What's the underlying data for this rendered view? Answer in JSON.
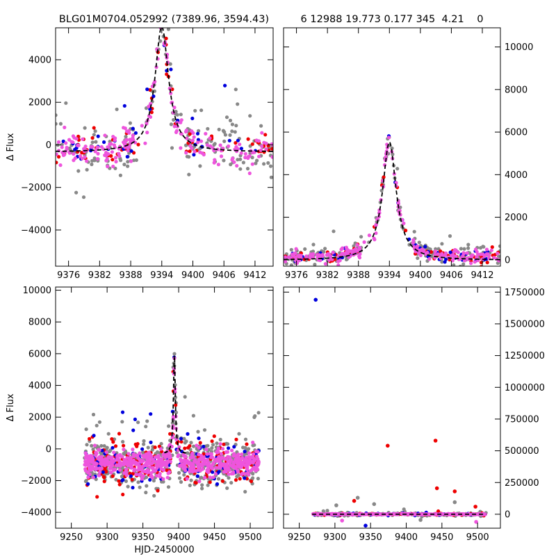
{
  "header": {
    "left_title": "BLG01M0704.052992 (7389.96, 3594.43)",
    "right_title": "6 12988 19.773 0.177 345  4.21    0"
  },
  "colors": {
    "gray": "#888888",
    "red": "#ee0000",
    "blue": "#0000dd",
    "magenta": "#ee55dd",
    "model": "#000000"
  },
  "chart_data": [
    {
      "id": "top-left",
      "type": "scatter",
      "title": "BLG01M0704.052992 (7389.96, 3594.43)",
      "xlabel": "",
      "ylabel": "Δ Flux",
      "xlim": [
        9373.5,
        9415.5
      ],
      "ylim": [
        -5700,
        5500
      ],
      "xticks": [
        9376,
        9382,
        9388,
        9394,
        9400,
        9406,
        9412
      ],
      "xtick_labels": [
        "9376",
        "9382",
        "9388",
        "9394",
        "9400",
        "9406",
        "9412"
      ],
      "yticks": [
        -4000,
        -2000,
        0,
        2000,
        4000
      ],
      "ytick_labels": [
        "−4000",
        "−2000",
        "0",
        "2000",
        "4000"
      ],
      "yaxis_side": "left",
      "xaxis_labels": true,
      "model": {
        "t0": 9394.0,
        "tE_hw": 1.6,
        "amp": 5900,
        "base": -340,
        "x": [
          9373.5,
          9415.5
        ]
      },
      "scatter": {
        "seed": 11,
        "x": [
          9373.5,
          9415.5
        ],
        "gap": [
          9388.6,
          9391.0
        ],
        "gap2": [
          9397.1,
          9398.6
        ],
        "base": -300,
        "n": [
          180,
          70,
          40,
          200
        ],
        "spread": [
          1400,
          900,
          900,
          700
        ]
      }
    },
    {
      "id": "top-right",
      "type": "scatter",
      "title": "6 12988 19.773 0.177 345  4.21    0",
      "xlabel": "",
      "ylabel": "",
      "xlim": [
        9373.5,
        9415.5
      ],
      "ylim": [
        -300,
        10900
      ],
      "xticks": [
        9376,
        9382,
        9388,
        9394,
        9400,
        9406,
        9412
      ],
      "xtick_labels": [
        "9376",
        "9382",
        "9388",
        "9394",
        "9400",
        "9406",
        "9412"
      ],
      "yticks": [
        0,
        2000,
        4000,
        6000,
        8000,
        10000
      ],
      "ytick_labels": [
        "0",
        "2000",
        "4000",
        "6000",
        "8000",
        "10000"
      ],
      "yaxis_side": "right",
      "xaxis_labels": true,
      "model": {
        "t0": 9394.0,
        "tE_hw": 1.6,
        "amp": 5550,
        "base": -20,
        "x": [
          9373.5,
          9415.5
        ]
      },
      "scatter": {
        "seed": 23,
        "x": [
          9373.5,
          9415.5
        ],
        "gap": [
          9388.6,
          9391.0
        ],
        "gap2": [
          9397.1,
          9398.6
        ],
        "base": 100,
        "n": [
          180,
          70,
          40,
          200
        ],
        "spread": [
          500,
          350,
          350,
          300
        ]
      }
    },
    {
      "id": "bottom-left",
      "type": "scatter",
      "title": "",
      "xlabel": "HJD-2450000",
      "ylabel": "Δ Flux",
      "xlim": [
        9228,
        9532
      ],
      "ylim": [
        -5000,
        10200
      ],
      "xticks": [
        9250,
        9300,
        9350,
        9400,
        9450,
        9500
      ],
      "xtick_labels": [
        "9250",
        "9300",
        "9350",
        "9400",
        "9450",
        "9500"
      ],
      "yticks": [
        -4000,
        -2000,
        0,
        2000,
        4000,
        6000,
        8000,
        10000
      ],
      "ytick_labels": [
        "−4000",
        "−2000",
        "0",
        "2000",
        "4000",
        "6000",
        "8000",
        "10000"
      ],
      "yaxis_side": "left",
      "xaxis_labels": true,
      "model": {
        "t0": 9394.0,
        "tE_hw": 1.6,
        "amp": 6200,
        "base": -320,
        "x": [
          9380,
          9410
        ]
      },
      "scatter": {
        "seed": 37,
        "x": [
          9268,
          9512
        ],
        "gap": [
          9388.6,
          9391.0
        ],
        "gap2": [
          9399.0,
          9400.5
        ],
        "base": -900,
        "n": [
          500,
          170,
          90,
          600
        ],
        "spread": [
          1500,
          1700,
          1700,
          700
        ]
      }
    },
    {
      "id": "bottom-right",
      "type": "scatter",
      "title": "",
      "xlabel": "",
      "ylabel": "",
      "xlim": [
        9228,
        9532
      ],
      "ylim": [
        -110000,
        1790000
      ],
      "xticks": [
        9250,
        9300,
        9350,
        9400,
        9450,
        9500
      ],
      "xtick_labels": [
        "9250",
        "9300",
        "9350",
        "9400",
        "9450",
        "9500"
      ],
      "yticks": [
        0,
        250000,
        500000,
        750000,
        1000000,
        1250000,
        1500000,
        1750000
      ],
      "ytick_labels": [
        "0",
        "250000",
        "500000",
        "750000",
        "1000000",
        "1250000",
        "1500000",
        "1750000"
      ],
      "yaxis_side": "right",
      "xaxis_labels": true,
      "model": {
        "t0": 9394.0,
        "tE_hw": 1.6,
        "amp": 6200,
        "base": -320,
        "x": [
          9268,
          9512
        ]
      },
      "scatter": {
        "seed": 53,
        "x": [
          9268,
          9512
        ],
        "gap": [
          9388.6,
          9391.0
        ],
        "gap2": [
          9399.0,
          9400.5
        ],
        "base": 0,
        "n": [
          160,
          60,
          40,
          260
        ],
        "spread": [
          14000,
          10000,
          10000,
          3000
        ]
      },
      "outliers": [
        {
          "x": 9273,
          "y": 1690000,
          "color": "blue"
        },
        {
          "x": 9374,
          "y": 540000,
          "color": "red"
        },
        {
          "x": 9441,
          "y": 580000,
          "color": "red"
        },
        {
          "x": 9443,
          "y": 205000,
          "color": "red"
        },
        {
          "x": 9468,
          "y": 180000,
          "color": "red"
        },
        {
          "x": 9332,
          "y": 130000,
          "color": "gray"
        },
        {
          "x": 9327,
          "y": 105000,
          "color": "red"
        },
        {
          "x": 9355,
          "y": 80000,
          "color": "gray"
        },
        {
          "x": 9302,
          "y": 70000,
          "color": "gray"
        },
        {
          "x": 9468,
          "y": 95000,
          "color": "gray"
        },
        {
          "x": 9497,
          "y": 60000,
          "color": "red"
        },
        {
          "x": 9343,
          "y": -90000,
          "color": "blue"
        },
        {
          "x": 9498,
          "y": -60000,
          "color": "magenta"
        },
        {
          "x": 9310,
          "y": -50000,
          "color": "magenta"
        },
        {
          "x": 9420,
          "y": -45000,
          "color": "gray"
        }
      ]
    }
  ]
}
